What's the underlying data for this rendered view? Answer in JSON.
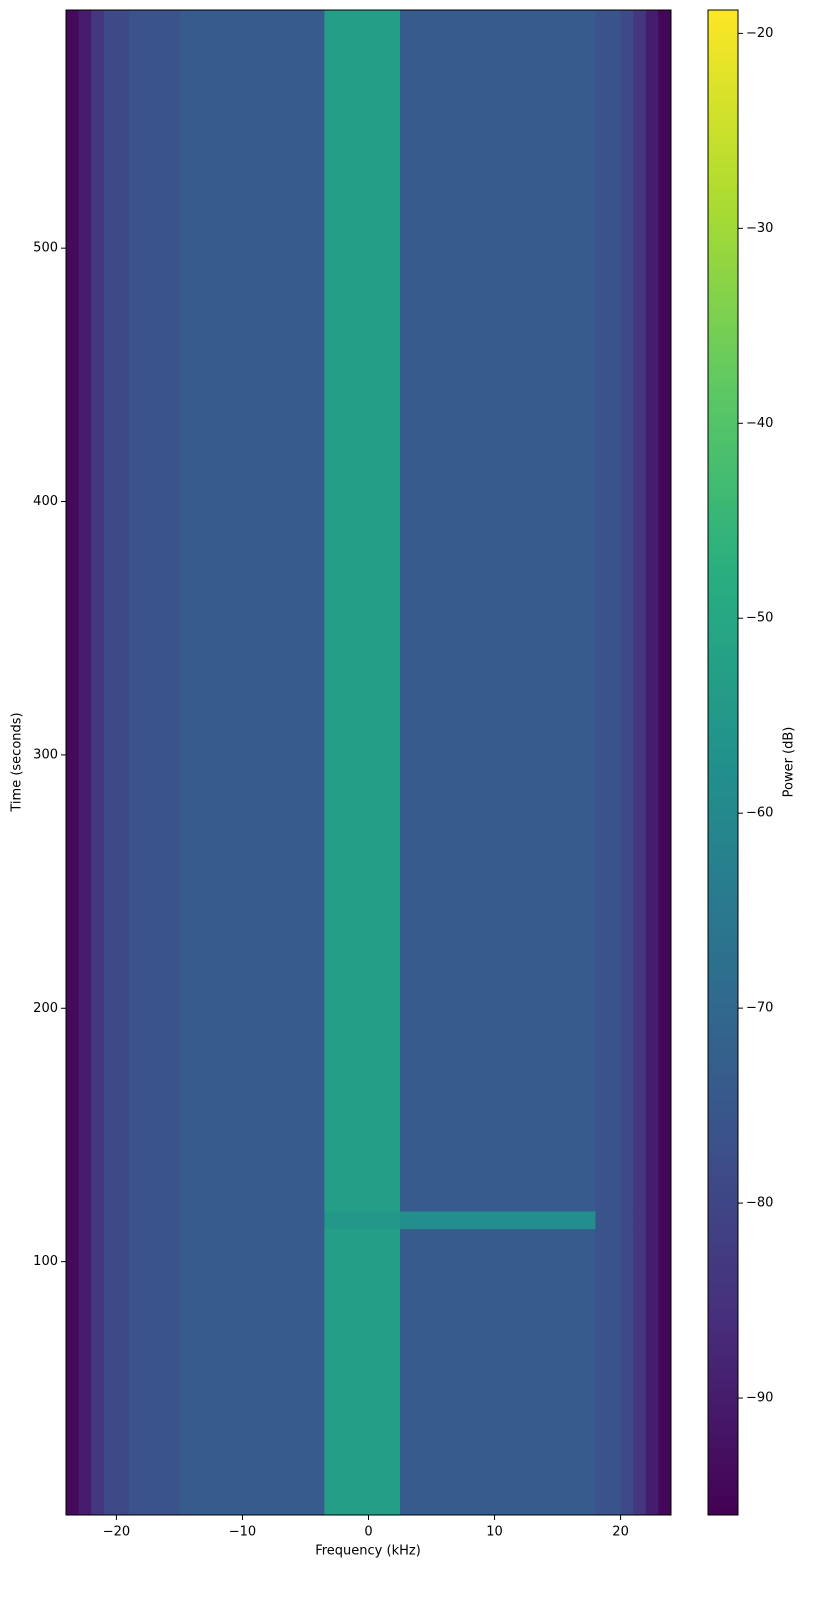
{
  "chart_data": {
    "type": "heatmap",
    "xlabel": "Frequency (kHz)",
    "ylabel": "Time (seconds)",
    "colorbar_label": "Power (dB)",
    "colormap": "viridis",
    "x_bins": [
      -24,
      -23,
      -22,
      -21,
      -19,
      -15,
      -3.5,
      2.5,
      18,
      20,
      21,
      22,
      23,
      24
    ],
    "y_bins": [
      0,
      113,
      120,
      594
    ],
    "values": [
      [
        -94,
        -90,
        -84,
        -79,
        -76,
        -74,
        -53,
        -74,
        -76,
        -79,
        -84,
        -90,
        -95
      ],
      [
        -94,
        -90,
        -84,
        -79,
        -76,
        -74,
        -55,
        -58,
        -76,
        -79,
        -84,
        -90,
        -95
      ],
      [
        -94,
        -90,
        -84,
        -79,
        -76,
        -74,
        -53,
        -74,
        -76,
        -79,
        -84,
        -90,
        -95
      ]
    ],
    "xlim": [
      -24,
      24
    ],
    "ylim": [
      0,
      594
    ],
    "clim": [
      -96,
      -18.8
    ],
    "xticks": [
      {
        "value": -20,
        "label": "−20"
      },
      {
        "value": -10,
        "label": "−10"
      },
      0,
      10,
      20
    ],
    "yticks": [
      100,
      200,
      300,
      400,
      500
    ],
    "cticks": [
      {
        "value": -90,
        "label": "−90"
      },
      {
        "value": -80,
        "label": "−80"
      },
      {
        "value": -70,
        "label": "−70"
      },
      {
        "value": -60,
        "label": "−60"
      },
      {
        "value": -50,
        "label": "−50"
      },
      {
        "value": -40,
        "label": "−40"
      },
      {
        "value": -30,
        "label": "−30"
      },
      {
        "value": -20,
        "label": "−20"
      }
    ]
  }
}
